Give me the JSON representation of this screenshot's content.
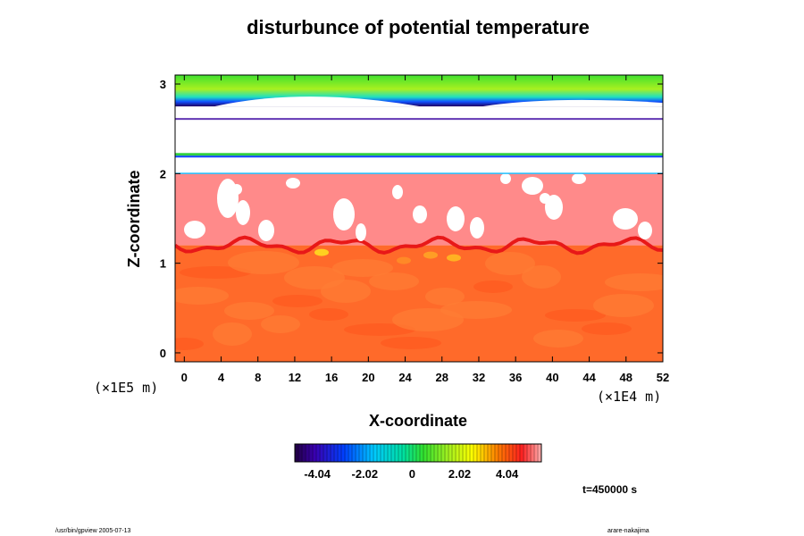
{
  "chart_data": {
    "type": "heatmap",
    "title": "disturbunce of potential temperature",
    "xlabel": "X-coordinate",
    "ylabel": "Z-coordinate",
    "x_scale_label": "(×1E4 m)",
    "y_scale_label": "(×1E5 m)",
    "xlim": [
      -1,
      52
    ],
    "ylim": [
      -0.1,
      3.1
    ],
    "x_ticks": [
      0,
      4,
      8,
      12,
      16,
      20,
      24,
      28,
      32,
      36,
      40,
      44,
      48,
      52
    ],
    "y_ticks": [
      0,
      1,
      2,
      3
    ],
    "layers": [
      {
        "from": -0.1,
        "to": 1.2,
        "value": 3.5
      },
      {
        "from": 1.2,
        "to": 2.0,
        "value": 4.6
      },
      {
        "from": 2.0,
        "to": 2.75,
        "value": null
      },
      {
        "from": 2.75,
        "to": 3.1,
        "value": 0.5
      }
    ],
    "colorbar": {
      "min": -5.0,
      "max": 5.5,
      "tick_values": [
        -4.04,
        -2.02,
        0,
        2.02,
        4.04
      ],
      "tick_labels": [
        "-4.04",
        "-2.02",
        "0",
        "2.02",
        "4.04"
      ]
    },
    "time_label": "t=450000 s",
    "footer_left": "/usr/bin/gpview 2005-07-13",
    "footer_right": "arare-nakajima"
  },
  "colors": {
    "lower_layer": "#ff6a2a",
    "middle_layer": "#ff8a8a",
    "upper_layer": "#38e030",
    "blank": "#ffffff",
    "frame": "#000000"
  }
}
